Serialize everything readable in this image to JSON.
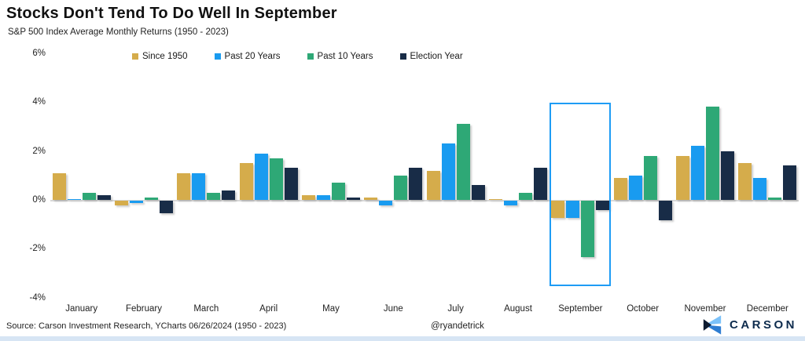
{
  "header": {
    "title": "Stocks Don't Tend To Do Well In September",
    "subtitle": "S&P 500 Index Average Monthly Returns (1950 - 2023)"
  },
  "chart_data": {
    "type": "bar",
    "title": "Stocks Don't Tend To Do Well In September",
    "subtitle": "S&P 500 Index Average Monthly Returns (1950 - 2023)",
    "categories": [
      "January",
      "February",
      "March",
      "April",
      "May",
      "June",
      "July",
      "August",
      "September",
      "October",
      "November",
      "December"
    ],
    "series": [
      {
        "name": "Since 1950",
        "color": "#d5ac4b",
        "values": [
          1.1,
          -0.2,
          1.1,
          1.5,
          0.2,
          0.1,
          1.2,
          0.0,
          -0.7,
          0.9,
          1.8,
          1.5
        ]
      },
      {
        "name": "Past 20 Years",
        "color": "#199bf0",
        "values": [
          0.0,
          -0.1,
          1.1,
          1.9,
          0.2,
          -0.2,
          2.3,
          -0.2,
          -0.7,
          1.0,
          2.2,
          0.9
        ]
      },
      {
        "name": "Past 10 Years",
        "color": "#2ea876",
        "values": [
          0.3,
          0.1,
          0.3,
          1.7,
          0.7,
          1.0,
          3.1,
          0.3,
          -2.3,
          1.8,
          3.8,
          0.1
        ]
      },
      {
        "name": "Election Year",
        "color": "#182c47",
        "values": [
          0.2,
          -0.5,
          0.4,
          1.3,
          0.1,
          1.3,
          0.6,
          1.3,
          -0.4,
          -0.8,
          2.0,
          1.4
        ]
      }
    ],
    "ylabel": "",
    "xlabel": "",
    "ylim": [
      -4,
      6
    ],
    "yticks": [
      6,
      4,
      2,
      0,
      -2,
      -4
    ],
    "ytick_labels": [
      "6%",
      "4%",
      "2%",
      "0%",
      "-2%",
      "-4%"
    ],
    "grid": "zero-line-only",
    "legend_position": "top",
    "highlighted_category": "September",
    "highlight_color": "#1e9cf5"
  },
  "footer": {
    "source": "Source: Carson Investment Research, YCharts 06/26/2024 (1950 - 2023)",
    "handle": "@ryandetrick",
    "brand": "CARSON"
  },
  "colors": {
    "accent_blue": "#1e9cf5",
    "zero_line": "#d9d9d9",
    "brand_navy": "#0d2b4d",
    "brand_light_blue": "#7bc1f9",
    "brand_mid_blue": "#2e7dd2",
    "bottom_strip": "#d7e5f4"
  }
}
